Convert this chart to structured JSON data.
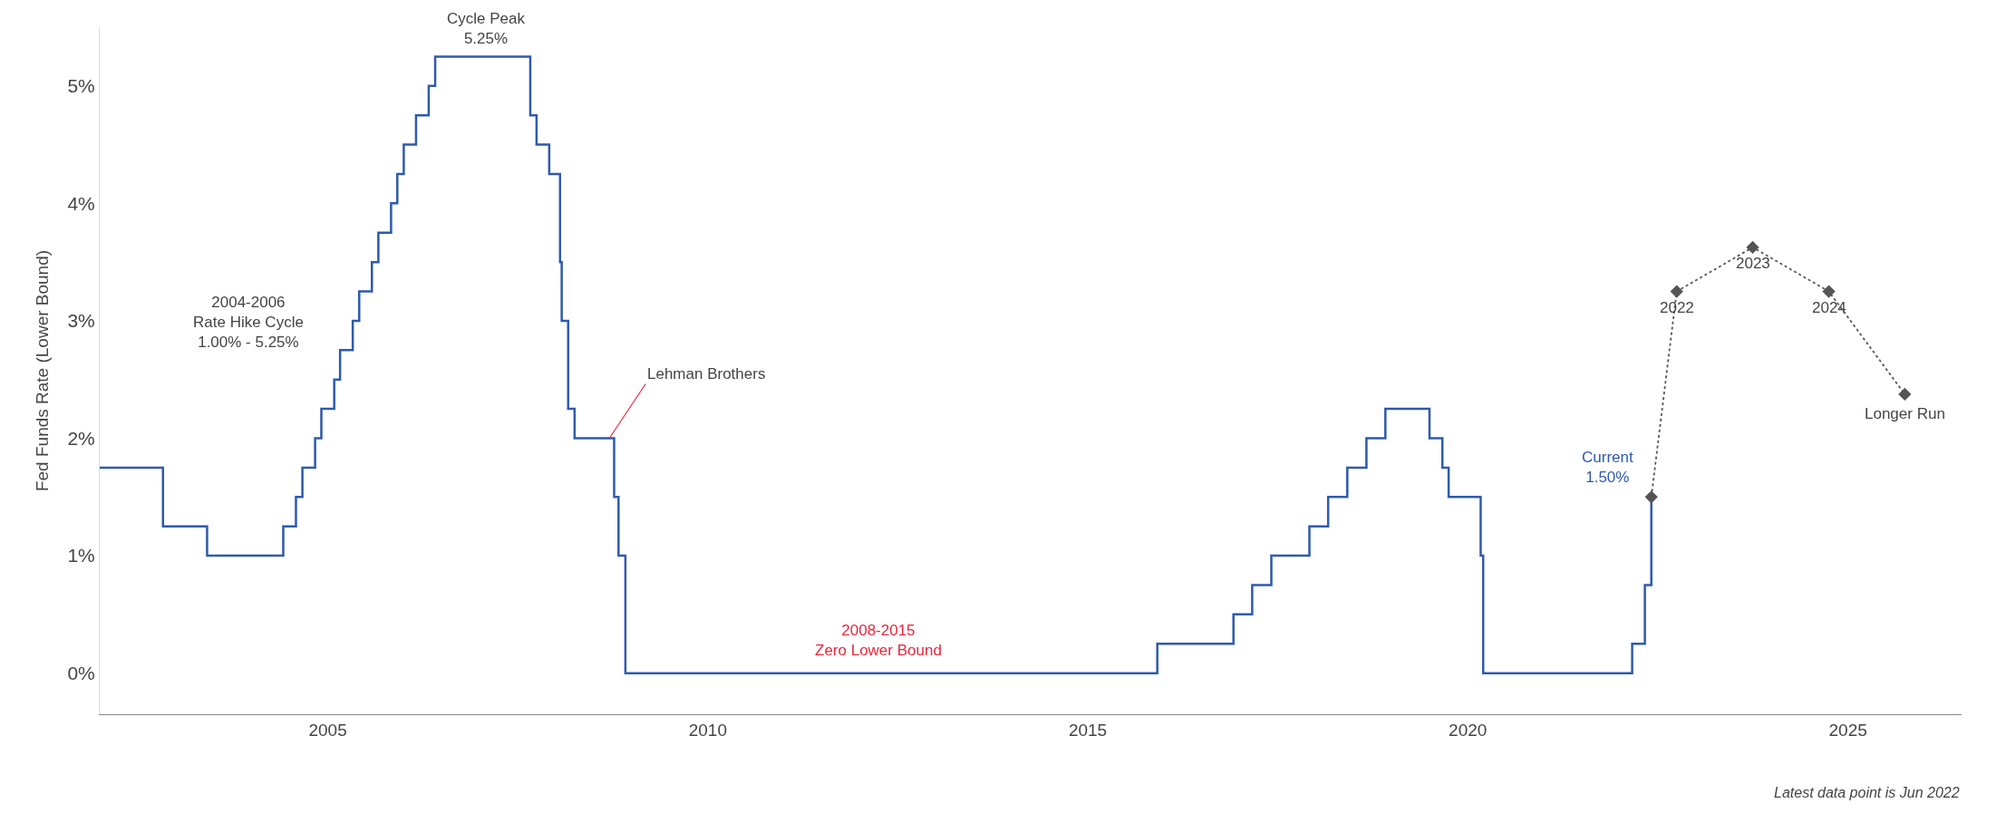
{
  "chart_data": {
    "type": "step",
    "ylabel": "Fed Funds Rate (Lower Bound)",
    "xlim": [
      "2002-01",
      "2026-07"
    ],
    "xticks": [
      "2005",
      "2010",
      "2015",
      "2020",
      "2025"
    ],
    "ylim": [
      -0.35,
      5.5
    ],
    "yticks": [
      {
        "value": 0,
        "label": "0%"
      },
      {
        "value": 1,
        "label": "1%"
      },
      {
        "value": 2,
        "label": "2%"
      },
      {
        "value": 3,
        "label": "3%"
      },
      {
        "value": 4,
        "label": "4%"
      },
      {
        "value": 5,
        "label": "5%"
      }
    ],
    "legend": false,
    "series": [
      {
        "color": "#2e5aac",
        "marker": "none",
        "line_style": "solid",
        "x": [
          "2002-01",
          "2002-11",
          "2003-06",
          "2004-06",
          "2004-08",
          "2004-09",
          "2004-11",
          "2004-12",
          "2005-02",
          "2005-03",
          "2005-05",
          "2005-06",
          "2005-08",
          "2005-09",
          "2005-11",
          "2005-12",
          "2006-01",
          "2006-03",
          "2006-05",
          "2006-06",
          "2007-09",
          "2007-10",
          "2007-12",
          "2008-01-22",
          "2008-01-30",
          "2008-03",
          "2008-04",
          "2008-10-08",
          "2008-10-29",
          "2008-12",
          "2015-12",
          "2016-12",
          "2017-03",
          "2017-06",
          "2017-12",
          "2018-03",
          "2018-06",
          "2018-09",
          "2018-12",
          "2019-07",
          "2019-09",
          "2019-10",
          "2020-03-03",
          "2020-03-15",
          "2022-03",
          "2022-05",
          "2022-06"
        ],
        "values": [
          1.75,
          1.25,
          1.0,
          1.25,
          1.5,
          1.75,
          2.0,
          2.25,
          2.5,
          2.75,
          3.0,
          3.25,
          3.5,
          3.75,
          4.0,
          4.25,
          4.5,
          4.75,
          5.0,
          5.25,
          4.75,
          4.5,
          4.25,
          3.5,
          3.0,
          2.25,
          2.0,
          1.5,
          1.0,
          0.0,
          0.25,
          0.5,
          0.75,
          1.0,
          1.25,
          1.5,
          1.75,
          2.0,
          2.25,
          2.0,
          1.75,
          1.5,
          1.0,
          0.0,
          0.25,
          0.75,
          1.5
        ]
      },
      {
        "type": "line",
        "color": "#555555",
        "marker": "diamond",
        "line_style": "dotted",
        "x": [
          "2022-06",
          "2022-10",
          "2023-10",
          "2024-10",
          "2025-10"
        ],
        "values": [
          1.5,
          3.25,
          3.625,
          3.25,
          2.375
        ]
      }
    ],
    "annotations": [
      {
        "text": "Cycle Peak\n5.25%",
        "x": "2007-02",
        "y": 5.25
      },
      "2004-2006\nRate Hike Cycle\n1.00% - 5.25%",
      {
        "text": "Lehman Brothers",
        "x": "2008-09-15",
        "y": 2.0
      },
      {
        "text": "2008-2015\nZero Lower Bound",
        "x": "2012-04",
        "y": 0.0
      },
      {
        "text": "Current\n1.50%",
        "x": "2022-06",
        "y": 1.5
      },
      {
        "text": "2022",
        "x": "2022-10",
        "y": 3.25
      },
      {
        "text": "2023",
        "x": "2023-10",
        "y": 3.625
      },
      {
        "text": "2024",
        "x": "2024-10",
        "y": 3.25
      },
      {
        "text": "Longer Run",
        "x": "2025-10",
        "y": 2.375
      },
      "Latest data point is Jun 2022"
    ]
  }
}
